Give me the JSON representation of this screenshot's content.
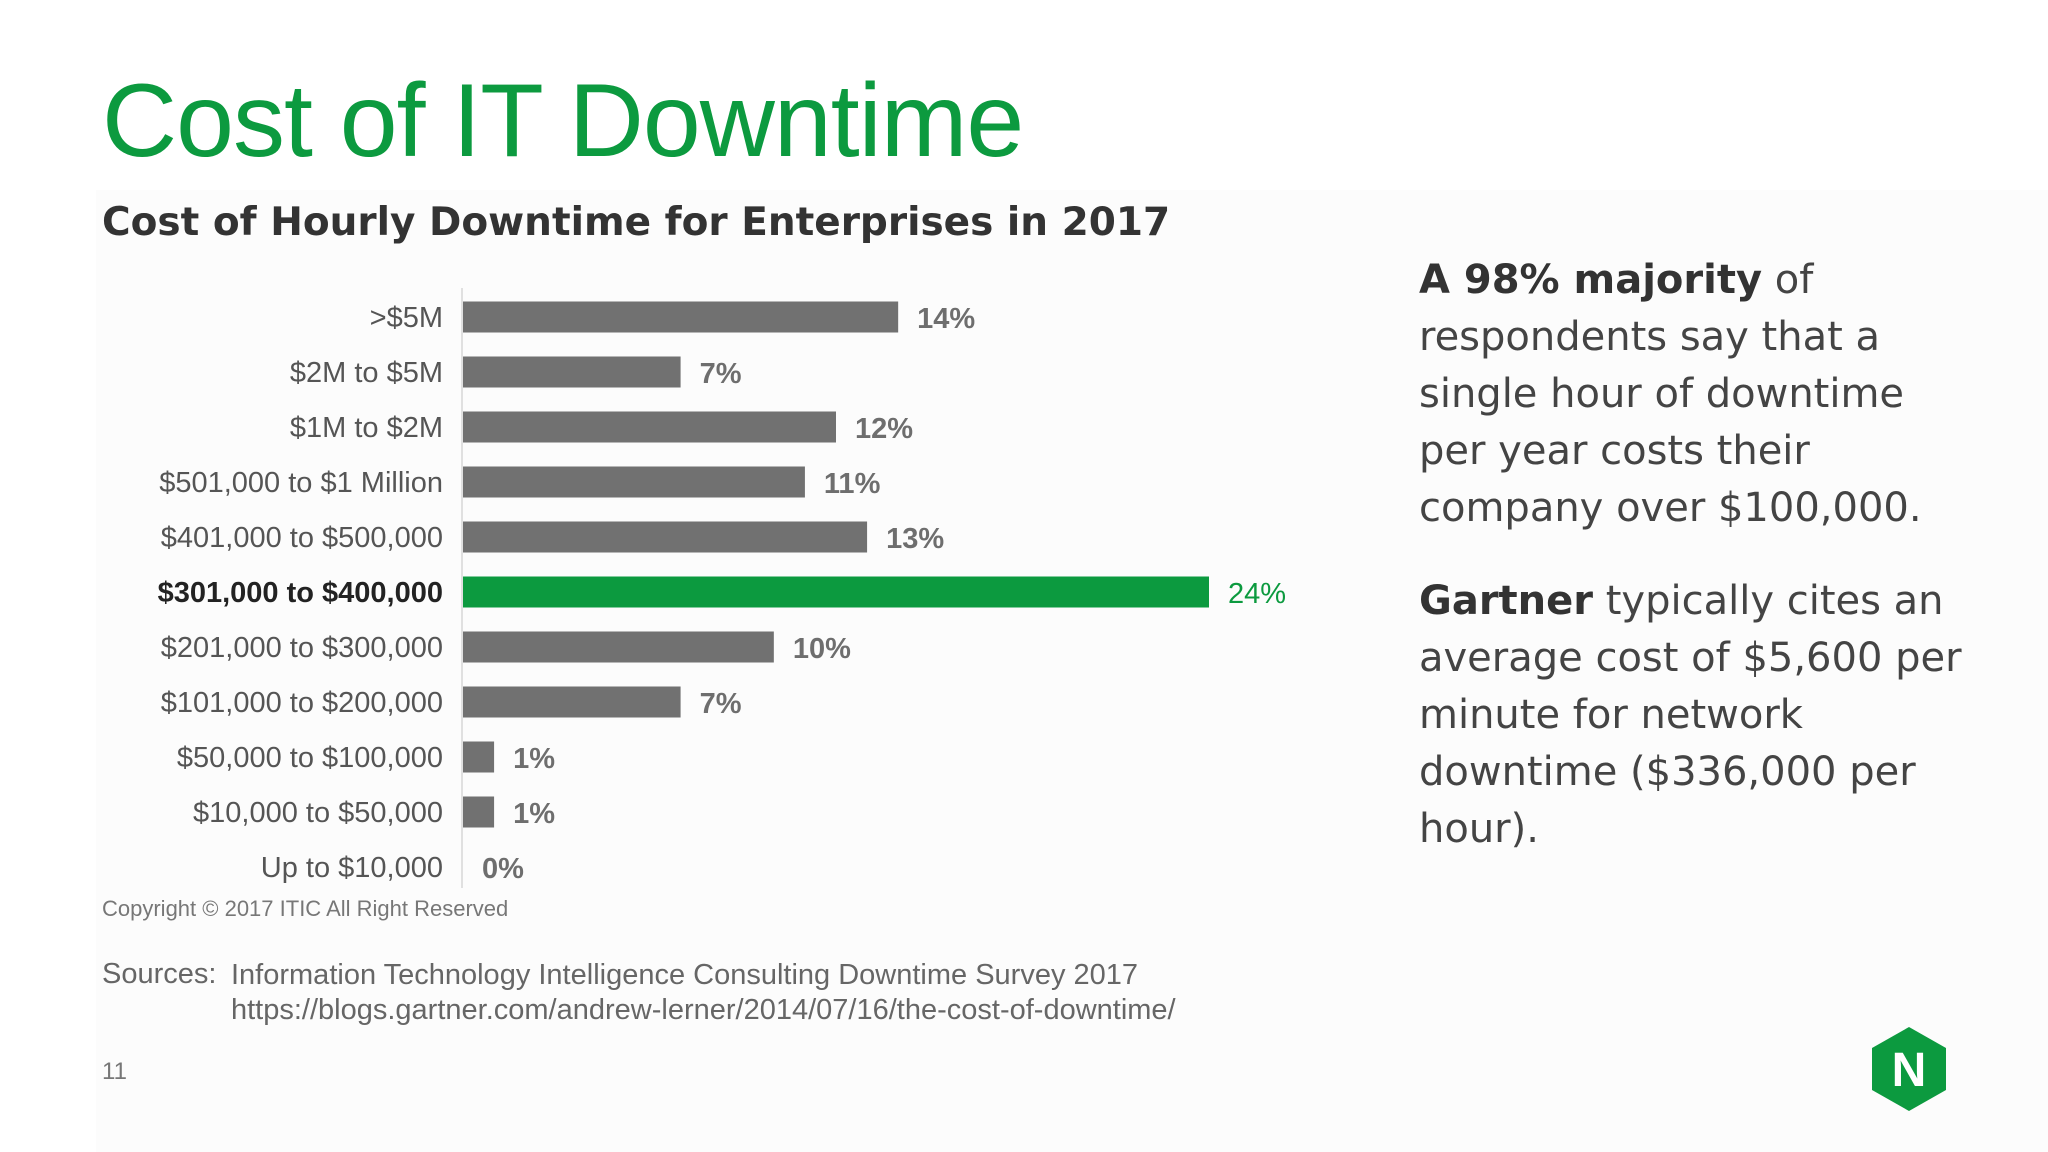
{
  "slide": {
    "title": "Cost of IT Downtime",
    "page_number": "11",
    "copyright": "Copyright © 2017 ITIC All Right Reserved",
    "sources_label": "Sources:",
    "sources": [
      "Information Technology Intelligence Consulting Downtime Survey 2017",
      "https://blogs.gartner.com/andrew-lerner/2014/07/16/the-cost-of-downtime/"
    ],
    "logo_letter": "N"
  },
  "sidebar": {
    "p1_bold": "A 98% majority",
    "p1_text": " of respondents say that a single hour of downtime per year costs their company over $100,000.",
    "p2_bold": "Gartner",
    "p2_text": " typically cites an average cost of $5,600 per minute for network downtime ($336,000 per hour)."
  },
  "colors": {
    "title_green": "#0c9a3f",
    "bar_gray": "#717171",
    "bar_highlight": "#0c9a3f",
    "logo_green": "#0c9a3f"
  },
  "chart_data": {
    "type": "bar",
    "orientation": "horizontal",
    "title": "Cost of Hourly Downtime for Enterprises in 2017",
    "categories": [
      ">$5M",
      "$2M to $5M",
      "$1M to $2M",
      "$501,000 to $1 Million",
      "$401,000 to $500,000",
      "$301,000 to $400,000",
      "$201,000 to $300,000",
      "$101,000 to $200,000",
      "$50,000 to $100,000",
      "$10,000 to $50,000",
      "Up to $10,000"
    ],
    "values": [
      14,
      7,
      12,
      11,
      13,
      24,
      10,
      7,
      1,
      1,
      0
    ],
    "value_labels": [
      "14%",
      "7%",
      "12%",
      "11%",
      "13%",
      "24%",
      "10%",
      "7%",
      "1%",
      "1%",
      "0%"
    ],
    "highlight_index": 5,
    "unit": "%",
    "xlim": [
      0,
      24
    ],
    "grid": false,
    "legend": "none"
  }
}
